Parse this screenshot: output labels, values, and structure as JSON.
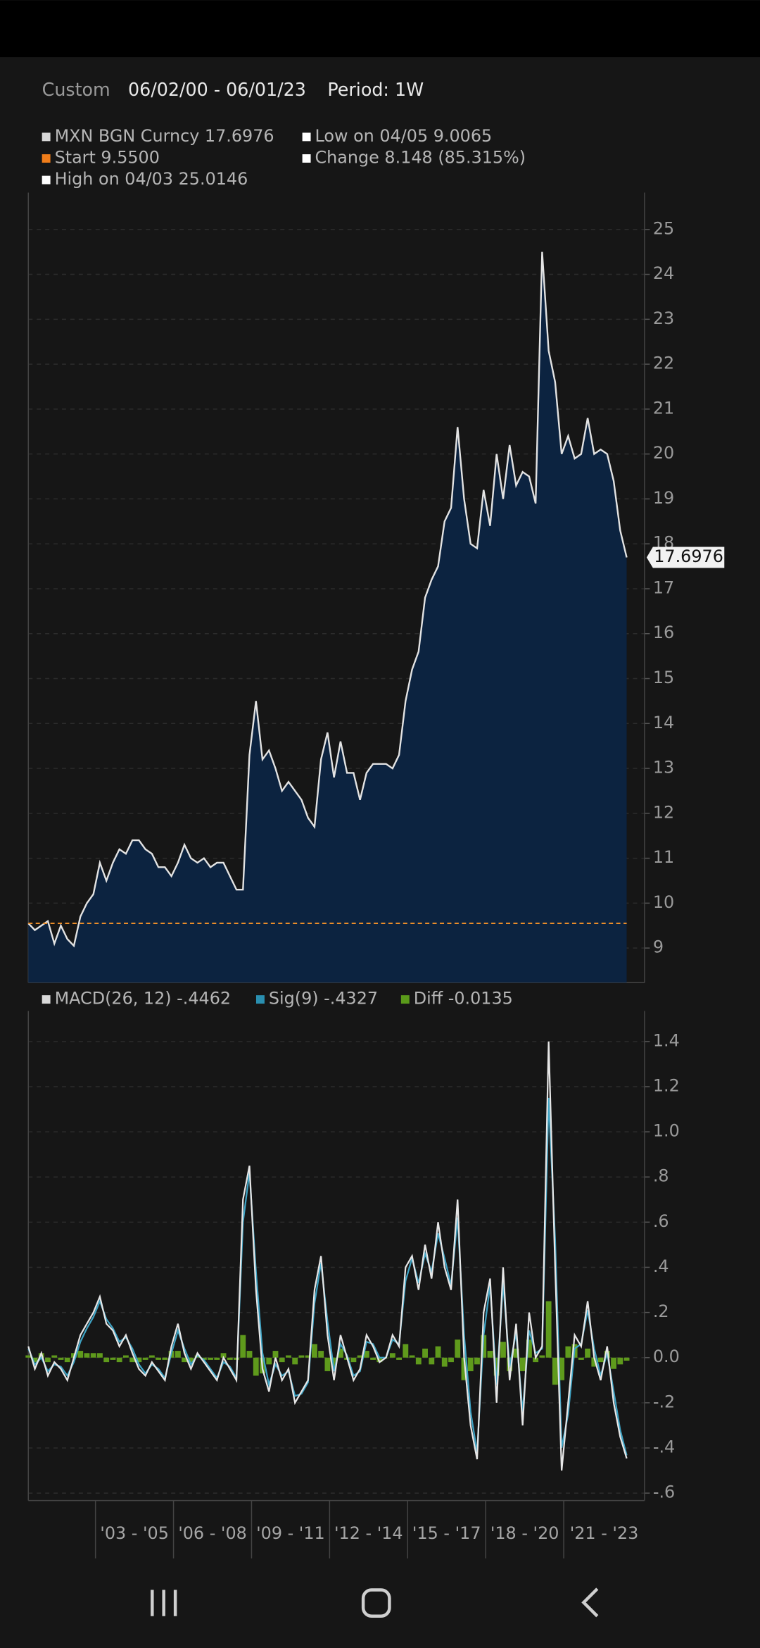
{
  "header": {
    "mode": "Custom",
    "range": "06/02/00 - 06/01/23",
    "period": "Period: 1W"
  },
  "chart_data": [
    {
      "type": "area",
      "legend": [
        {
          "label": "MXN BGN Curncy 17.6976",
          "color": "#d9d9d9"
        },
        {
          "label": "Low on 04/05 9.0065",
          "color": "#ffffff"
        },
        {
          "label": "Start 9.5500",
          "color": "#f07d1a"
        },
        {
          "label": "Change 8.148 (85.315%)",
          "color": "#ffffff"
        },
        {
          "label": "High on 04/03 25.0146",
          "color": "#ffffff"
        }
      ],
      "series": [
        {
          "color": "#e3e3e3",
          "fill": "#0c2340",
          "values": [
            9.55,
            9.4,
            9.5,
            9.6,
            9.1,
            9.5,
            9.2,
            9.05,
            9.7,
            10.0,
            10.2,
            10.9,
            10.5,
            10.9,
            11.2,
            11.1,
            11.4,
            11.4,
            11.2,
            11.1,
            10.8,
            10.8,
            10.6,
            10.9,
            11.3,
            11.0,
            10.9,
            11.0,
            10.8,
            10.9,
            10.9,
            10.6,
            10.3,
            10.3,
            13.3,
            14.5,
            13.2,
            13.4,
            13.0,
            12.5,
            12.7,
            12.5,
            12.3,
            11.9,
            11.7,
            13.2,
            13.8,
            12.8,
            13.6,
            12.9,
            12.9,
            12.3,
            12.9,
            13.1,
            13.1,
            13.1,
            13.0,
            13.3,
            14.5,
            15.2,
            15.6,
            16.8,
            17.2,
            17.5,
            18.5,
            18.8,
            20.6,
            19.0,
            18.0,
            17.9,
            19.2,
            18.4,
            20.0,
            19.0,
            20.2,
            19.3,
            19.6,
            19.5,
            18.9,
            24.5,
            22.3,
            21.6,
            20.0,
            20.4,
            19.9,
            20.0,
            20.8,
            20.0,
            20.1,
            20.0,
            19.4,
            18.3,
            17.6976
          ]
        }
      ],
      "reference_line": {
        "value": 9.55,
        "color": "#f0902a"
      },
      "xlim": [
        0,
        92
      ],
      "ylim": [
        8.23,
        25.82
      ],
      "yticks": [
        9,
        10,
        11,
        12,
        13,
        14,
        15,
        16,
        17,
        18,
        19,
        20,
        21,
        22,
        23,
        24,
        25
      ],
      "grid": true
    },
    {
      "type": "macd",
      "legend": [
        {
          "label": "MACD(26, 12) -.4462",
          "color": "#d9d9d9"
        },
        {
          "label": "Sig(9) -.4327",
          "color": "#2a8fb0"
        },
        {
          "label": "Diff -0.0135",
          "color": "#5a9a1a"
        }
      ],
      "series": [
        {
          "color": "#e6e6e6",
          "values": [
            0.05,
            -0.05,
            0.02,
            -0.08,
            -0.02,
            -0.05,
            -0.1,
            0.0,
            0.1,
            0.15,
            0.2,
            0.27,
            0.15,
            0.12,
            0.05,
            0.1,
            0.02,
            -0.05,
            -0.08,
            -0.02,
            -0.06,
            -0.1,
            0.05,
            0.15,
            0.02,
            -0.05,
            0.02,
            -0.02,
            -0.06,
            -0.1,
            0.0,
            -0.05,
            -0.1,
            0.7,
            0.85,
            0.3,
            -0.05,
            -0.15,
            0.0,
            -0.1,
            -0.05,
            -0.2,
            -0.15,
            -0.1,
            0.3,
            0.45,
            0.1,
            -0.1,
            0.1,
            0.0,
            -0.1,
            -0.05,
            0.1,
            0.05,
            -0.02,
            0.0,
            0.1,
            0.05,
            0.4,
            0.45,
            0.3,
            0.5,
            0.35,
            0.6,
            0.4,
            0.3,
            0.7,
            0.0,
            -0.3,
            -0.45,
            0.2,
            0.35,
            -0.2,
            0.4,
            -0.1,
            0.15,
            -0.3,
            0.2,
            0.0,
            0.05,
            1.4,
            0.4,
            -0.5,
            -0.2,
            0.1,
            0.05,
            0.25,
            0.0,
            -0.1,
            0.05,
            -0.2,
            -0.35,
            -0.4462
          ]
        },
        {
          "color": "#3ea3c4",
          "values": [
            0.04,
            -0.03,
            0.0,
            -0.06,
            -0.03,
            -0.04,
            -0.08,
            -0.02,
            0.07,
            0.13,
            0.18,
            0.25,
            0.17,
            0.13,
            0.07,
            0.09,
            0.04,
            -0.03,
            -0.07,
            -0.03,
            -0.05,
            -0.09,
            0.02,
            0.12,
            0.04,
            -0.03,
            0.01,
            -0.01,
            -0.05,
            -0.09,
            -0.02,
            -0.04,
            -0.09,
            0.6,
            0.82,
            0.38,
            0.02,
            -0.12,
            -0.03,
            -0.08,
            -0.06,
            -0.17,
            -0.16,
            -0.11,
            0.24,
            0.42,
            0.16,
            -0.06,
            0.06,
            0.01,
            -0.08,
            -0.06,
            0.07,
            0.06,
            0.0,
            0.0,
            0.08,
            0.06,
            0.34,
            0.44,
            0.33,
            0.46,
            0.38,
            0.55,
            0.44,
            0.32,
            0.62,
            0.1,
            -0.24,
            -0.42,
            0.1,
            0.32,
            -0.12,
            0.33,
            -0.04,
            0.11,
            -0.24,
            0.12,
            0.02,
            0.04,
            1.15,
            0.52,
            -0.4,
            -0.25,
            0.04,
            0.06,
            0.21,
            0.04,
            -0.08,
            0.02,
            -0.15,
            -0.32,
            -0.4327
          ]
        },
        {
          "color": "#5f9a1c",
          "values": [
            0.01,
            -0.02,
            0.02,
            -0.02,
            0.01,
            -0.01,
            -0.02,
            0.02,
            0.03,
            0.02,
            0.02,
            0.02,
            -0.02,
            -0.01,
            -0.02,
            0.01,
            -0.02,
            -0.02,
            -0.01,
            0.01,
            -0.01,
            -0.01,
            0.03,
            0.03,
            -0.02,
            -0.02,
            0.01,
            -0.01,
            -0.01,
            -0.01,
            0.02,
            -0.01,
            -0.01,
            0.1,
            0.03,
            -0.08,
            -0.07,
            -0.03,
            0.03,
            -0.02,
            0.01,
            -0.03,
            0.01,
            0.01,
            0.06,
            0.03,
            -0.06,
            -0.04,
            0.04,
            -0.01,
            -0.02,
            0.01,
            0.03,
            -0.01,
            -0.02,
            0.0,
            0.02,
            -0.01,
            0.06,
            0.01,
            -0.03,
            0.04,
            -0.03,
            0.05,
            -0.04,
            -0.02,
            0.08,
            -0.1,
            -0.06,
            -0.03,
            0.1,
            0.03,
            -0.08,
            0.07,
            -0.06,
            0.04,
            -0.06,
            0.08,
            -0.02,
            0.01,
            0.25,
            -0.12,
            -0.1,
            0.05,
            0.06,
            -0.01,
            0.04,
            -0.04,
            -0.02,
            0.03,
            -0.05,
            -0.03,
            -0.0135
          ]
        }
      ],
      "xlim": [
        0,
        92
      ],
      "ylim": [
        -0.633,
        1.535
      ],
      "yticks": [
        1.4,
        1.2,
        {
          "value": 1.0,
          "label": "1.0"
        },
        {
          "value": 0.8,
          "label": ".8"
        },
        {
          "value": 0.6,
          "label": ".6"
        },
        {
          "value": 0.4,
          "label": ".4"
        },
        {
          "value": 0.2,
          "label": ".2"
        },
        {
          "value": 0,
          "label": "0.0"
        },
        {
          "value": -0.2,
          "label": "-.2"
        },
        {
          "value": -0.4,
          "label": "-.4"
        },
        {
          "value": -0.6,
          "label": "-.6"
        }
      ],
      "xticks": [
        {
          "value": 10.32,
          "label": "'03 - '05"
        },
        {
          "value": 22.32,
          "label": "'06 - '08"
        },
        {
          "value": 34.32,
          "label": "'09 - '11"
        },
        {
          "value": 46.32,
          "label": "'12 - '14"
        },
        {
          "value": 58.32,
          "label": "'15 - '17"
        },
        {
          "value": 70.32,
          "label": "'18 - '20"
        },
        {
          "value": 82.32,
          "label": "'21 - '23"
        }
      ],
      "grid": true
    }
  ]
}
